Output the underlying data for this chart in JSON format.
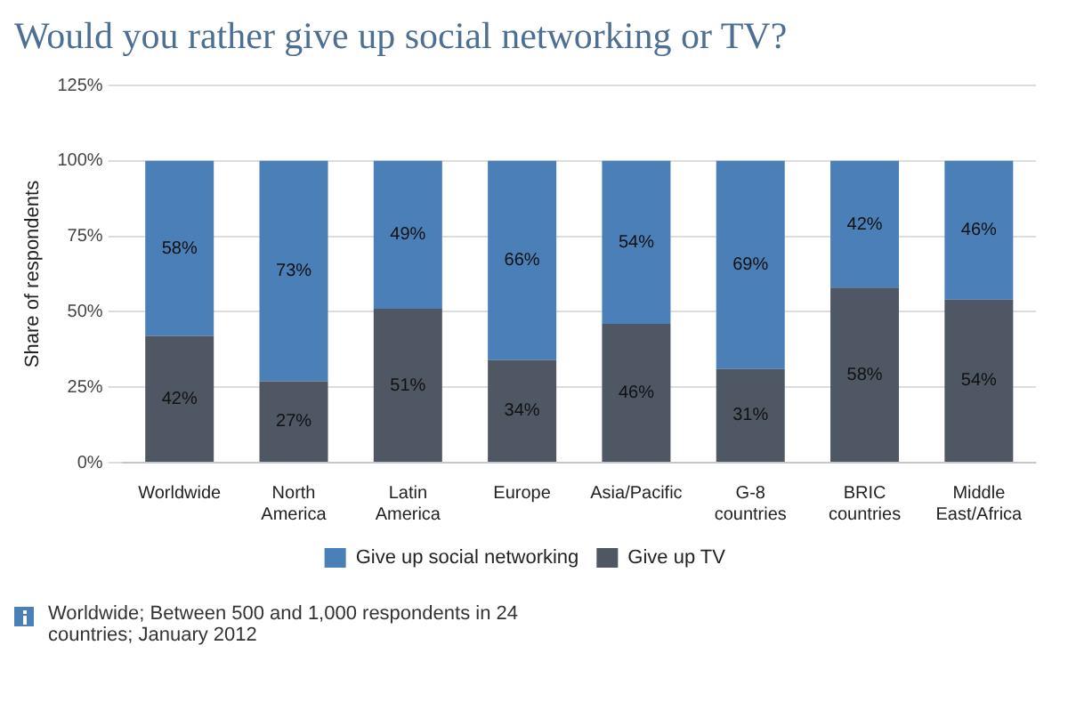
{
  "chart_data": {
    "type": "bar",
    "title": "Would you rather give up social networking or TV?",
    "ylabel": "Share of respondents",
    "categories": [
      "Worldwide",
      "North America",
      "Latin America",
      "Europe",
      "Asia/Pacific",
      "G-8 countries",
      "BRIC countries",
      "Middle East/Africa"
    ],
    "stacked": true,
    "series": [
      {
        "name": "Give up TV",
        "color": "#4f5764",
        "values": [
          42,
          27,
          51,
          34,
          46,
          31,
          58,
          54
        ],
        "value_labels": [
          "42%",
          "27%",
          "51%",
          "34%",
          "46%",
          "31%",
          "58%",
          "54%"
        ]
      },
      {
        "name": "Give up social networking",
        "color": "#4a7fb8",
        "values": [
          58,
          73,
          49,
          66,
          54,
          69,
          42,
          46
        ],
        "value_labels": [
          "58%",
          "73%",
          "49%",
          "66%",
          "54%",
          "69%",
          "42%",
          "46%"
        ]
      }
    ],
    "ylim": [
      0,
      125
    ],
    "yticks": [
      {
        "value": 0,
        "label": "0%"
      },
      {
        "value": 25,
        "label": "25%"
      },
      {
        "value": 50,
        "label": "50%"
      },
      {
        "value": 75,
        "label": "75%"
      },
      {
        "value": 100,
        "label": "100%"
      },
      {
        "value": 125,
        "label": "125%"
      }
    ],
    "grid": "y",
    "legend": "bottom",
    "annotations": [
      "Worldwide; Between 500 and 1,000 respondents in 24 countries; January 2012"
    ]
  }
}
